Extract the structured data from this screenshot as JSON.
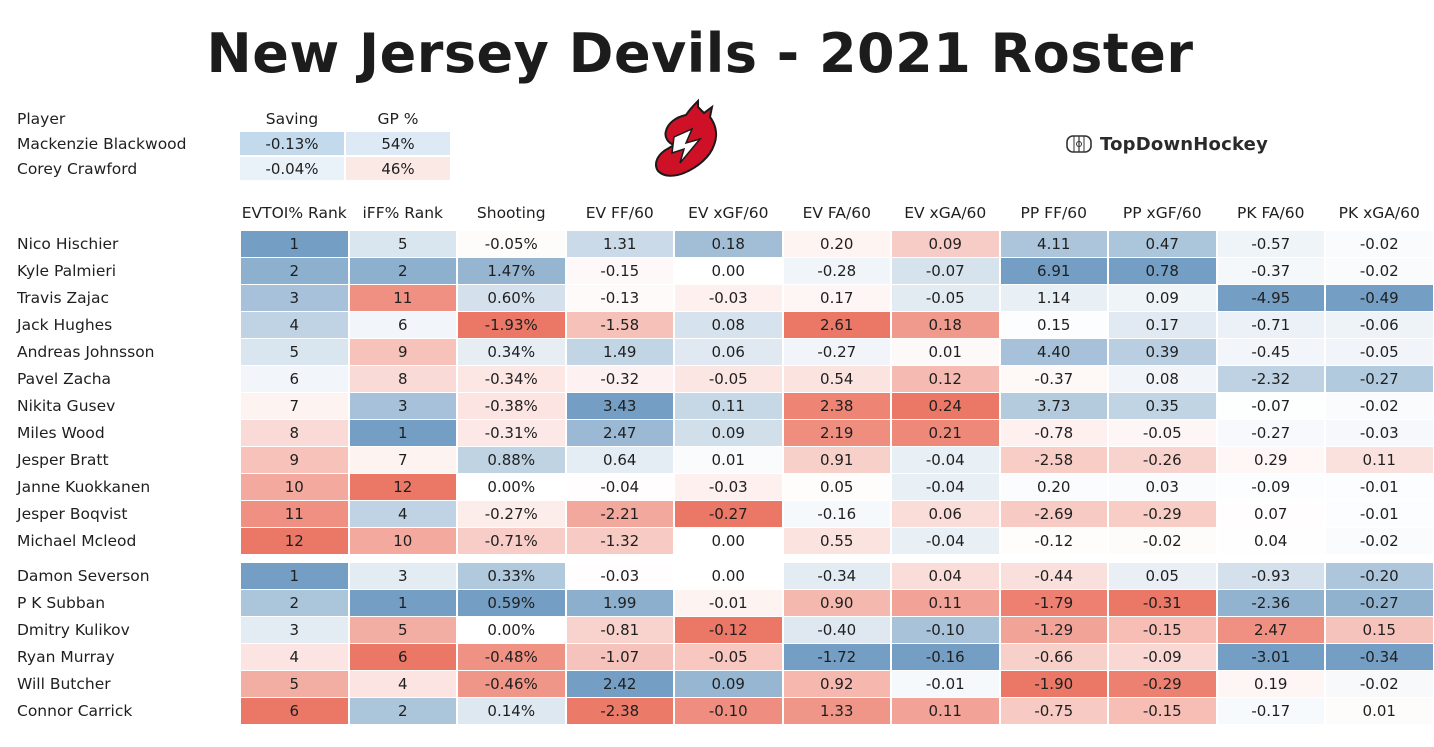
{
  "title": "New Jersey Devils - 2021 Roster",
  "brand": {
    "name": "TopDownHockey",
    "icon": "rink-icon"
  },
  "logo": {
    "icon": "devils-logo",
    "color": "#ce1126"
  },
  "goalie_table": {
    "headers": [
      "Player",
      "Saving",
      "GP %"
    ],
    "rows": [
      {
        "name": "Mackenzie Blackwood",
        "saving": "-0.13%",
        "gp": "54%"
      },
      {
        "name": "Corey Crawford",
        "saving": "-0.04%",
        "gp": "46%"
      }
    ]
  },
  "skater_table": {
    "headers": [
      "EVTOI% Rank",
      "iFF% Rank",
      "Shooting",
      "EV FF/60",
      "EV xGF/60",
      "EV FA/60",
      "EV xGA/60",
      "PP FF/60",
      "PP xGF/60",
      "PK FA/60",
      "PK xGA/60"
    ],
    "forwards": [
      {
        "name": "Nico Hischier",
        "values": [
          "1",
          "5",
          "-0.05%",
          "1.31",
          "0.18",
          "0.20",
          "0.09",
          "4.11",
          "0.47",
          "-0.57",
          "-0.02"
        ]
      },
      {
        "name": "Kyle Palmieri",
        "values": [
          "2",
          "2",
          "1.47%",
          "-0.15",
          "0.00",
          "-0.28",
          "-0.07",
          "6.91",
          "0.78",
          "-0.37",
          "-0.02"
        ]
      },
      {
        "name": "Travis Zajac",
        "values": [
          "3",
          "11",
          "0.60%",
          "-0.13",
          "-0.03",
          "0.17",
          "-0.05",
          "1.14",
          "0.09",
          "-4.95",
          "-0.49"
        ]
      },
      {
        "name": "Jack Hughes",
        "values": [
          "4",
          "6",
          "-1.93%",
          "-1.58",
          "0.08",
          "2.61",
          "0.18",
          "0.15",
          "0.17",
          "-0.71",
          "-0.06"
        ]
      },
      {
        "name": "Andreas Johnsson",
        "values": [
          "5",
          "9",
          "0.34%",
          "1.49",
          "0.06",
          "-0.27",
          "0.01",
          "4.40",
          "0.39",
          "-0.45",
          "-0.05"
        ]
      },
      {
        "name": "Pavel Zacha",
        "values": [
          "6",
          "8",
          "-0.34%",
          "-0.32",
          "-0.05",
          "0.54",
          "0.12",
          "-0.37",
          "0.08",
          "-2.32",
          "-0.27"
        ]
      },
      {
        "name": "Nikita Gusev",
        "values": [
          "7",
          "3",
          "-0.38%",
          "3.43",
          "0.11",
          "2.38",
          "0.24",
          "3.73",
          "0.35",
          "-0.07",
          "-0.02"
        ]
      },
      {
        "name": "Miles Wood",
        "values": [
          "8",
          "1",
          "-0.31%",
          "2.47",
          "0.09",
          "2.19",
          "0.21",
          "-0.78",
          "-0.05",
          "-0.27",
          "-0.03"
        ]
      },
      {
        "name": "Jesper Bratt",
        "values": [
          "9",
          "7",
          "0.88%",
          "0.64",
          "0.01",
          "0.91",
          "-0.04",
          "-2.58",
          "-0.26",
          "0.29",
          "0.11"
        ]
      },
      {
        "name": "Janne Kuokkanen",
        "values": [
          "10",
          "12",
          "0.00%",
          "-0.04",
          "-0.03",
          "0.05",
          "-0.04",
          "0.20",
          "0.03",
          "-0.09",
          "-0.01"
        ]
      },
      {
        "name": "Jesper Boqvist",
        "values": [
          "11",
          "4",
          "-0.27%",
          "-2.21",
          "-0.27",
          "-0.16",
          "0.06",
          "-2.69",
          "-0.29",
          "0.07",
          "-0.01"
        ]
      },
      {
        "name": "Michael Mcleod",
        "values": [
          "12",
          "10",
          "-0.71%",
          "-1.32",
          "0.00",
          "0.55",
          "-0.04",
          "-0.12",
          "-0.02",
          "0.04",
          "-0.02"
        ]
      }
    ],
    "defense": [
      {
        "name": "Damon Severson",
        "values": [
          "1",
          "3",
          "0.33%",
          "-0.03",
          "0.00",
          "-0.34",
          "0.04",
          "-0.44",
          "0.05",
          "-0.93",
          "-0.20"
        ]
      },
      {
        "name": "P K  Subban",
        "values": [
          "2",
          "1",
          "0.59%",
          "1.99",
          "-0.01",
          "0.90",
          "0.11",
          "-1.79",
          "-0.31",
          "-2.36",
          "-0.27"
        ]
      },
      {
        "name": "Dmitry Kulikov",
        "values": [
          "3",
          "5",
          "0.00%",
          "-0.81",
          "-0.12",
          "-0.40",
          "-0.10",
          "-1.29",
          "-0.15",
          "2.47",
          "0.15"
        ]
      },
      {
        "name": "Ryan Murray",
        "values": [
          "4",
          "6",
          "-0.48%",
          "-1.07",
          "-0.05",
          "-1.72",
          "-0.16",
          "-0.66",
          "-0.09",
          "-3.01",
          "-0.34"
        ]
      },
      {
        "name": "Will Butcher",
        "values": [
          "5",
          "4",
          "-0.46%",
          "2.42",
          "0.09",
          "0.92",
          "-0.01",
          "-1.90",
          "-0.29",
          "0.19",
          "-0.02"
        ]
      },
      {
        "name": "Connor Carrick",
        "values": [
          "6",
          "2",
          "0.14%",
          "-2.38",
          "-0.10",
          "1.33",
          "0.11",
          "-0.75",
          "-0.15",
          "-0.17",
          "0.01"
        ]
      }
    ]
  },
  "colors": {
    "good": "#5b8db8",
    "bad": "#e8604c",
    "neutral": "#ffffff"
  }
}
